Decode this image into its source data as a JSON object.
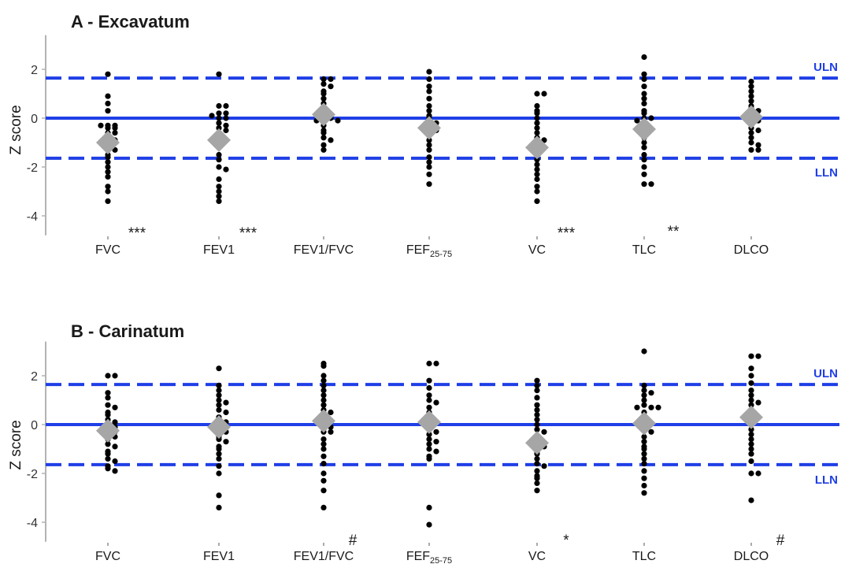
{
  "colors": {
    "reference_lines": "#1f3fe6",
    "points": "#000000",
    "mean_marker": "#a6a6a6",
    "axis": "#b3b3b3"
  },
  "chart_data": [
    {
      "type": "scatter",
      "title": "A - Excavatum",
      "ylabel": "Z score",
      "ylim": [
        -4.8,
        3.4
      ],
      "yticks": [
        2,
        0,
        -2,
        -4
      ],
      "grid": false,
      "reference_lines": [
        {
          "label": "ULN",
          "y": 1.64,
          "style": "dashed"
        },
        {
          "label": "",
          "y": 0,
          "style": "solid"
        },
        {
          "label": "LLN",
          "y": -1.64,
          "style": "dashed"
        }
      ],
      "categories": [
        "FVC",
        "FEV1",
        "FEV1/FVC",
        "FEF",
        "VC",
        "TLC",
        "DLCO"
      ],
      "category_label_subscripts": [
        "",
        "",
        "",
        "25-75",
        "",
        "",
        ""
      ],
      "significance": [
        "***",
        "***",
        "",
        "",
        "***",
        "**",
        ""
      ],
      "means": [
        -1.0,
        -0.9,
        0.15,
        -0.4,
        -1.2,
        -0.45,
        0.05
      ],
      "points": [
        [
          1.8,
          0.9,
          0.6,
          0.3,
          -0.3,
          -0.3,
          -0.3,
          -0.4,
          -0.4,
          -0.6,
          -0.6,
          -0.8,
          -0.9,
          -1.0,
          -1.2,
          -1.3,
          -1.5,
          -1.6,
          -1.8,
          -2.0,
          -2.2,
          -2.4,
          -2.8,
          -3.0,
          -3.4
        ],
        [
          1.8,
          0.5,
          0.5,
          0.2,
          0.2,
          0.1,
          0.0,
          0.0,
          -0.2,
          -0.3,
          -0.4,
          -0.5,
          -0.7,
          -0.8,
          -1.0,
          -1.2,
          -1.5,
          -1.7,
          -2.0,
          -2.1,
          -2.5,
          -2.8,
          -3.0,
          -3.2,
          -3.4
        ],
        [
          1.6,
          1.6,
          1.4,
          1.3,
          1.1,
          1.0,
          0.8,
          0.6,
          0.4,
          0.2,
          0.0,
          0.0,
          -0.1,
          -0.1,
          -0.3,
          -0.5,
          -0.6,
          -0.8,
          -0.9,
          -1.1,
          -1.3
        ],
        [
          1.9,
          1.6,
          1.3,
          1.1,
          0.8,
          0.5,
          0.3,
          0.1,
          0.0,
          -0.2,
          -0.2,
          -0.4,
          -0.5,
          -0.7,
          -0.9,
          -1.1,
          -1.3,
          -1.6,
          -1.8,
          -2.0,
          -2.3,
          -2.7
        ],
        [
          1.0,
          1.0,
          0.5,
          0.3,
          0.2,
          0.0,
          -0.2,
          -0.4,
          -0.6,
          -0.8,
          -0.9,
          -1.1,
          -1.3,
          -1.5,
          -1.7,
          -1.9,
          -2.1,
          -2.3,
          -2.5,
          -2.8,
          -3.0,
          -3.4
        ],
        [
          2.5,
          1.8,
          1.6,
          1.3,
          1.0,
          0.8,
          0.6,
          0.3,
          0.2,
          0.0,
          0.0,
          -0.1,
          -0.2,
          -0.4,
          -0.6,
          -0.8,
          -1.0,
          -1.2,
          -1.5,
          -1.7,
          -2.0,
          -2.3,
          -2.7,
          -2.7
        ],
        [
          1.5,
          1.3,
          1.1,
          0.9,
          0.7,
          0.5,
          0.4,
          0.3,
          0.1,
          0.0,
          -0.1,
          -0.2,
          -0.4,
          -0.5,
          -0.6,
          -0.8,
          -1.0,
          -1.1,
          -1.3,
          -1.3
        ]
      ]
    },
    {
      "type": "scatter",
      "title": "B - Carinatum",
      "ylabel": "Z score",
      "ylim": [
        -4.8,
        3.4
      ],
      "yticks": [
        2,
        0,
        -2,
        -4
      ],
      "grid": false,
      "reference_lines": [
        {
          "label": "ULN",
          "y": 1.64,
          "style": "dashed"
        },
        {
          "label": "",
          "y": 0,
          "style": "solid"
        },
        {
          "label": "LLN",
          "y": -1.64,
          "style": "dashed"
        }
      ],
      "categories": [
        "FVC",
        "FEV1",
        "FEV1/FVC",
        "FEF",
        "VC",
        "TLC",
        "DLCO"
      ],
      "category_label_subscripts": [
        "",
        "",
        "",
        "25-75",
        "",
        "",
        ""
      ],
      "significance": [
        "",
        "",
        "#",
        "",
        "*",
        "",
        "#"
      ],
      "means": [
        -0.25,
        -0.1,
        0.15,
        0.1,
        -0.75,
        0.05,
        0.3
      ],
      "points": [
        [
          2.0,
          2.0,
          1.3,
          1.1,
          0.8,
          0.7,
          0.5,
          0.4,
          0.2,
          0.1,
          0.0,
          -0.1,
          -0.2,
          -0.3,
          -0.4,
          -0.5,
          -0.6,
          -0.8,
          -0.9,
          -1.1,
          -1.2,
          -1.4,
          -1.5,
          -1.7,
          -1.8,
          -1.9
        ],
        [
          2.3,
          1.6,
          1.4,
          1.2,
          1.0,
          0.9,
          0.8,
          0.6,
          0.5,
          0.3,
          0.2,
          0.1,
          0.0,
          -0.1,
          -0.2,
          -0.3,
          -0.5,
          -0.6,
          -0.7,
          -0.9,
          -1.0,
          -1.2,
          -1.4,
          -1.7,
          -2.0,
          -2.9,
          -3.4
        ],
        [
          2.5,
          2.4,
          2.0,
          1.8,
          1.6,
          1.4,
          1.2,
          1.0,
          0.8,
          0.6,
          0.5,
          0.3,
          0.1,
          0.0,
          -0.1,
          -0.3,
          -0.3,
          -0.6,
          -0.8,
          -1.0,
          -1.3,
          -1.6,
          -2.0,
          -2.3,
          -2.7,
          -3.4
        ],
        [
          2.5,
          2.5,
          1.8,
          1.5,
          1.2,
          1.0,
          0.9,
          0.7,
          0.5,
          0.4,
          0.2,
          0.1,
          0.0,
          -0.2,
          -0.3,
          -0.4,
          -0.6,
          -0.7,
          -0.8,
          -1.0,
          -1.1,
          -1.3,
          -1.4,
          -3.4,
          -4.1
        ],
        [
          1.8,
          1.6,
          1.4,
          1.1,
          0.8,
          0.6,
          0.4,
          0.2,
          0.0,
          -0.2,
          -0.3,
          -0.5,
          -0.6,
          -0.8,
          -0.9,
          -1.1,
          -1.2,
          -1.4,
          -1.6,
          -1.7,
          -1.9,
          -2.1,
          -2.2,
          -2.4,
          -2.7
        ],
        [
          3.0,
          1.6,
          1.4,
          1.3,
          1.2,
          1.0,
          0.8,
          0.7,
          0.7,
          0.7,
          0.5,
          0.3,
          0.1,
          0.0,
          -0.2,
          -0.3,
          -0.5,
          -0.7,
          -0.9,
          -1.0,
          -1.2,
          -1.4,
          -1.6,
          -1.9,
          -2.2,
          -2.5,
          -2.8
        ],
        [
          2.8,
          2.8,
          2.3,
          2.0,
          1.7,
          1.4,
          1.2,
          1.0,
          0.9,
          0.8,
          0.6,
          0.4,
          0.3,
          0.2,
          0.0,
          -0.2,
          -0.4,
          -0.6,
          -0.8,
          -1.0,
          -1.2,
          -1.5,
          -2.0,
          -2.0,
          -3.1
        ]
      ]
    }
  ]
}
